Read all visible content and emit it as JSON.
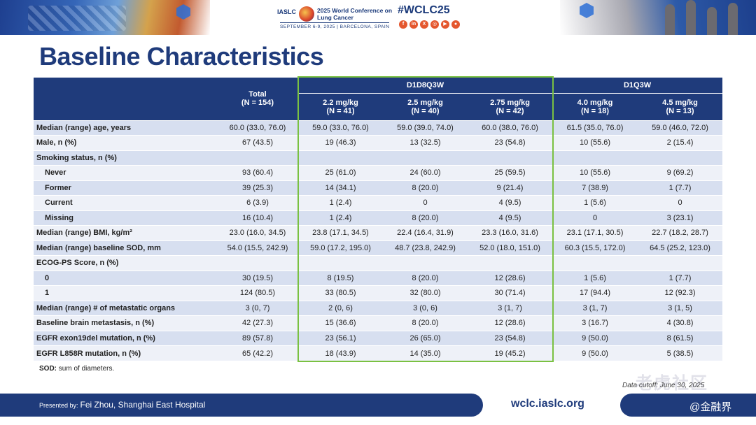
{
  "header": {
    "org": "IASLC",
    "conference_title": "2025 World Conference on Lung Cancer",
    "conference_dates": "SEPTEMBER 6-9, 2025  |  BARCELONA, SPAIN",
    "hashtag": "#WCLC25",
    "social_icons": [
      "facebook-icon",
      "linkedin-icon",
      "x-icon",
      "instagram-icon",
      "youtube-icon",
      "wechat-icon"
    ]
  },
  "title": "Baseline Characteristics",
  "table": {
    "group_headers": {
      "d1d8q3w": "D1D8Q3W",
      "d1q3w": "D1Q3W"
    },
    "total_header": {
      "label": "Total",
      "n": "(N = 154)"
    },
    "dose_headers": [
      {
        "dose": "2.2 mg/kg",
        "n": "(N = 41)"
      },
      {
        "dose": "2.5 mg/kg",
        "n": "(N = 40)"
      },
      {
        "dose": "2.75 mg/kg",
        "n": "(N = 42)"
      },
      {
        "dose": "4.0 mg/kg",
        "n": "(N = 18)"
      },
      {
        "dose": "4.5 mg/kg",
        "n": "(N = 13)"
      }
    ],
    "rows": [
      {
        "label": "Median (range) age, years",
        "values": [
          "60.0 (33.0, 76.0)",
          "59.0 (33.0, 76.0)",
          "59.0 (39.0, 74.0)",
          "60.0 (38.0, 76.0)",
          "61.5 (35.0, 76.0)",
          "59.0 (46.0, 72.0)"
        ]
      },
      {
        "label": "Male, n (%)",
        "values": [
          "67 (43.5)",
          "19 (46.3)",
          "13 (32.5)",
          "23 (54.8)",
          "10 (55.6)",
          "2 (15.4)"
        ]
      },
      {
        "label": "Smoking status, n (%)",
        "values": [
          "",
          "",
          "",
          "",
          "",
          ""
        ]
      },
      {
        "label": "Never",
        "values": [
          "93 (60.4)",
          "25 (61.0)",
          "24 (60.0)",
          "25 (59.5)",
          "10 (55.6)",
          "9 (69.2)"
        ]
      },
      {
        "label": "Former",
        "values": [
          "39 (25.3)",
          "14 (34.1)",
          "8 (20.0)",
          "9 (21.4)",
          "7 (38.9)",
          "1 (7.7)"
        ]
      },
      {
        "label": "Current",
        "values": [
          "6 (3.9)",
          "1 (2.4)",
          "0",
          "4 (9.5)",
          "1 (5.6)",
          "0"
        ]
      },
      {
        "label": "Missing",
        "values": [
          "16 (10.4)",
          "1 (2.4)",
          "8 (20.0)",
          "4 (9.5)",
          "0",
          "3 (23.1)"
        ]
      },
      {
        "label": "Median (range) BMI, kg/m²",
        "values": [
          "23.0 (16.0, 34.5)",
          "23.8 (17.1, 34.5)",
          "22.4 (16.4, 31.9)",
          "23.3 (16.0, 31.6)",
          "23.1 (17.1, 30.5)",
          "22.7 (18.2, 28.7)"
        ]
      },
      {
        "label": "Median (range) baseline SOD, mm",
        "values": [
          "54.0 (15.5, 242.9)",
          "59.0 (17.2, 195.0)",
          "48.7 (23.8, 242.9)",
          "52.0 (18.0, 151.0)",
          "60.3 (15.5, 172.0)",
          "64.5 (25.2, 123.0)"
        ]
      },
      {
        "label": "ECOG-PS Score, n (%)",
        "values": [
          "",
          "",
          "",
          "",
          "",
          ""
        ]
      },
      {
        "label": "0",
        "values": [
          "30 (19.5)",
          "8 (19.5)",
          "8 (20.0)",
          "12 (28.6)",
          "1 (5.6)",
          "1 (7.7)"
        ]
      },
      {
        "label": "1",
        "values": [
          "124 (80.5)",
          "33 (80.5)",
          "32 (80.0)",
          "30 (71.4)",
          "17 (94.4)",
          "12 (92.3)"
        ]
      },
      {
        "label": "Median (range) # of metastatic organs",
        "values": [
          "3 (0, 7)",
          "2 (0, 6)",
          "3 (0, 6)",
          "3 (1, 7)",
          "3 (1, 7)",
          "3 (1, 5)"
        ]
      },
      {
        "label": "Baseline brain metastasis, n (%)",
        "values": [
          "42 (27.3)",
          "15 (36.6)",
          "8 (20.0)",
          "12 (28.6)",
          "3 (16.7)",
          "4 (30.8)"
        ]
      },
      {
        "label": "EGFR exon19del mutation, n (%)",
        "values": [
          "89 (57.8)",
          "23 (56.1)",
          "26 (65.0)",
          "23 (54.8)",
          "9 (50.0)",
          "8 (61.5)"
        ]
      },
      {
        "label": "EGFR L858R mutation, n (%)",
        "values": [
          "65 (42.2)",
          "18 (43.9)",
          "14 (35.0)",
          "19 (45.2)",
          "9 (50.0)",
          "5 (38.5)"
        ]
      }
    ]
  },
  "footnote": {
    "term": "SOD:",
    "definition": "sum of diameters."
  },
  "data_cutoff": "Data cutoff: June 30, 2025",
  "watermark": "老虎社区",
  "footer": {
    "presented_by_label": "Presented by:",
    "presenter": "Fei Zhou, Shanghai East Hospital",
    "website": "wclc.iaslc.org",
    "brand": "@金融界"
  },
  "colors": {
    "navy": "#1f3b7b",
    "highlight_border": "#7ac142",
    "row_dark": "#d7dff0",
    "row_light": "#eef1f8"
  }
}
